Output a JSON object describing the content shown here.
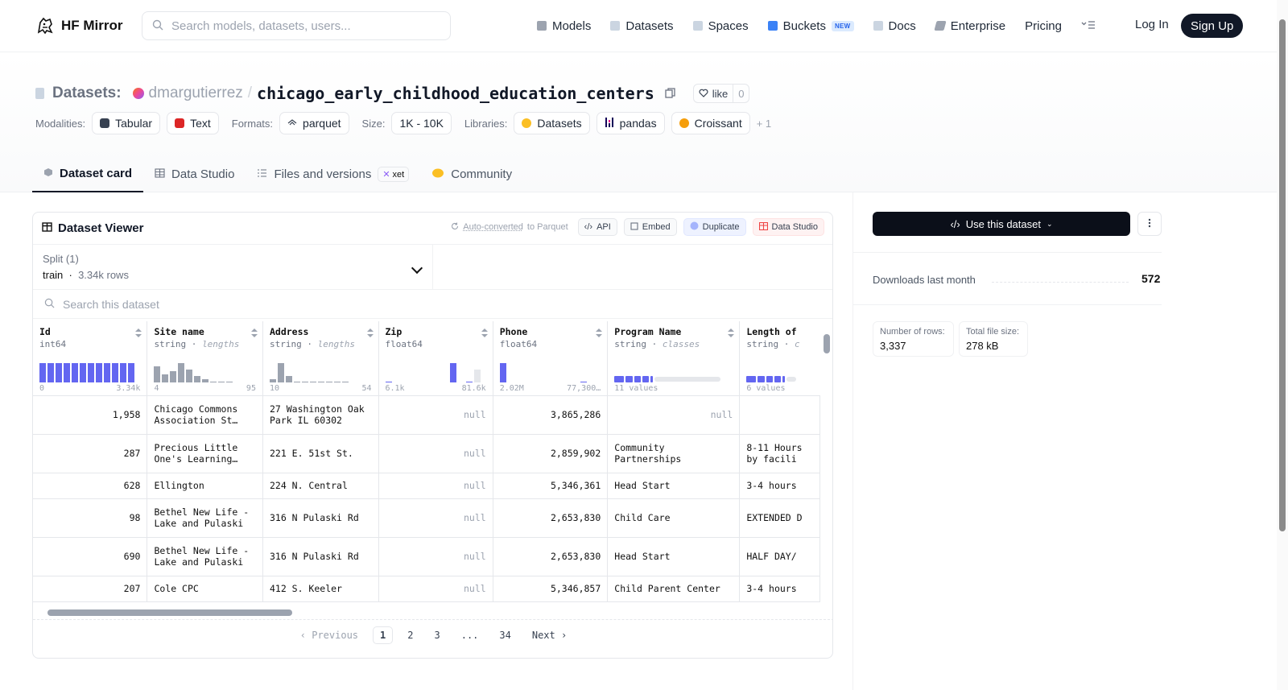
{
  "nav": {
    "brand": "HF Mirror",
    "search_placeholder": "Search models, datasets, users...",
    "links": [
      {
        "label": "Models",
        "icon": "cube-icon",
        "color": "#9ca3af"
      },
      {
        "label": "Datasets",
        "icon": "database-icon",
        "color": "#9ca3af"
      },
      {
        "label": "Spaces",
        "icon": "grid-icon",
        "color": "#9ca3af"
      },
      {
        "label": "Buckets",
        "icon": "bucket-icon",
        "color": "#3b82f6"
      },
      {
        "label": "Docs",
        "icon": "book-icon",
        "color": "#9ca3af"
      },
      {
        "label": "Enterprise",
        "icon": "enterprise-icon",
        "color": "#9ca3af"
      },
      {
        "label": "Pricing",
        "icon": "",
        "color": ""
      }
    ],
    "buckets_badge": "NEW",
    "login": "Log In",
    "signup": "Sign Up"
  },
  "header": {
    "section": "Datasets:",
    "owner": "dmargutierrez",
    "separator": "/",
    "repo": "chicago_early_childhood_education_centers",
    "like_label": "like",
    "like_count": "0",
    "modalities_label": "Modalities:",
    "modalities": [
      "Tabular",
      "Text"
    ],
    "formats_label": "Formats:",
    "formats": [
      "parquet"
    ],
    "size_label": "Size:",
    "size": "1K - 10K",
    "libraries_label": "Libraries:",
    "libraries": [
      "Datasets",
      "pandas",
      "Croissant"
    ],
    "libraries_more": "+ 1"
  },
  "tabs": [
    {
      "label": "Dataset card",
      "active": true
    },
    {
      "label": "Data Studio",
      "active": false
    },
    {
      "label": "Files and versions",
      "active": false
    },
    {
      "label": "Community",
      "active": false
    }
  ],
  "xet_badge": "xet",
  "viewer": {
    "title": "Dataset Viewer",
    "auto_link": "Auto-converted",
    "auto_rest": "to Parquet",
    "buttons": [
      "API",
      "Embed",
      "Duplicate",
      "Data Studio"
    ],
    "split_label": "Split (1)",
    "split_value": "train",
    "split_rows": "3.34k rows",
    "search_placeholder": "Search this dataset",
    "columns": [
      {
        "name": "Id",
        "type": "int64",
        "hint": "",
        "min": "0",
        "max": "3.34k"
      },
      {
        "name": "Site name",
        "type": "string",
        "hint": "lengths",
        "min": "4",
        "max": "95"
      },
      {
        "name": "Address",
        "type": "string",
        "hint": "lengths",
        "min": "10",
        "max": "54"
      },
      {
        "name": "Zip",
        "type": "float64",
        "hint": "",
        "min": "6.1k",
        "max": "81.6k"
      },
      {
        "name": "Phone",
        "type": "float64",
        "hint": "",
        "min": "2.02M",
        "max": "77,300…"
      },
      {
        "name": "Program Name",
        "type": "string",
        "hint": "classes",
        "min": "11 values",
        "max": ""
      },
      {
        "name": "Length of",
        "type": "string",
        "hint": "c",
        "min": "6 values",
        "max": ""
      }
    ],
    "rows": [
      [
        "1,958",
        "Chicago Commons Association St…",
        "27 Washington Oak Park IL 60302",
        "null",
        "3,865,286",
        "null",
        ""
      ],
      [
        "287",
        "Precious Little One's Learning…",
        "221 E. 51st St.",
        "null",
        "2,859,902",
        "Community Partnerships",
        "8-11 Hours by facili"
      ],
      [
        "628",
        "Ellington",
        "224 N. Central",
        "null",
        "5,346,361",
        "Head Start",
        "3-4 hours"
      ],
      [
        "98",
        "Bethel New Life - Lake and Pulaski",
        "316 N Pulaski Rd",
        "null",
        "2,653,830",
        "Child Care",
        "EXTENDED D"
      ],
      [
        "690",
        "Bethel New Life - Lake and Pulaski",
        "316 N Pulaski Rd",
        "null",
        "2,653,830",
        "Head Start",
        "HALF DAY/"
      ],
      [
        "207",
        "Cole CPC",
        "412 S. Keeler",
        "null",
        "5,346,857",
        "Child Parent Center",
        "3-4 hours"
      ]
    ],
    "pager": {
      "prev": "Previous",
      "pages": [
        "1",
        "2",
        "3",
        "...",
        "34"
      ],
      "next": "Next",
      "current": "1"
    }
  },
  "sidebar": {
    "use_button": "Use this dataset",
    "downloads_label": "Downloads last month",
    "downloads_value": "572",
    "rows_label": "Number of rows:",
    "rows_value": "3,337",
    "size_label": "Total file size:",
    "size_value": "278 kB"
  },
  "colors": {
    "accent": "#6366f1",
    "dark": "#0b0f19",
    "hist_gray": "#9ca3af"
  }
}
